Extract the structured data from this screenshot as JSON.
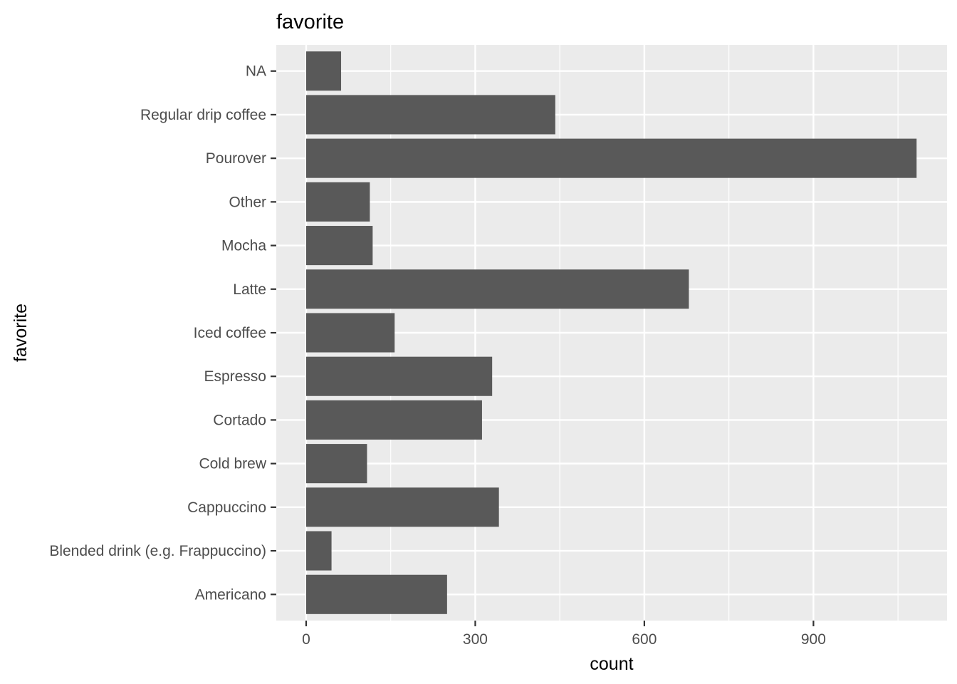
{
  "chart_data": {
    "type": "bar",
    "orientation": "horizontal",
    "title": "favorite",
    "xlabel": "count",
    "ylabel": "favorite",
    "categories": [
      "Americano",
      "Blended drink (e.g. Frappuccino)",
      "Cappuccino",
      "Cold brew",
      "Cortado",
      "Espresso",
      "Iced coffee",
      "Latte",
      "Mocha",
      "Other",
      "Pourover",
      "Regular drip coffee",
      "NA"
    ],
    "values": [
      250,
      45,
      342,
      108,
      312,
      330,
      157,
      679,
      118,
      113,
      1083,
      442,
      62
    ],
    "xlim": [
      -53,
      1137
    ],
    "xticks": [
      0,
      300,
      600,
      900
    ],
    "xtick_labels": [
      "0",
      "300",
      "600",
      "900"
    ],
    "bar_color": "#595959",
    "panel_background": "#ebebeb",
    "grid": true,
    "legend": "none"
  }
}
